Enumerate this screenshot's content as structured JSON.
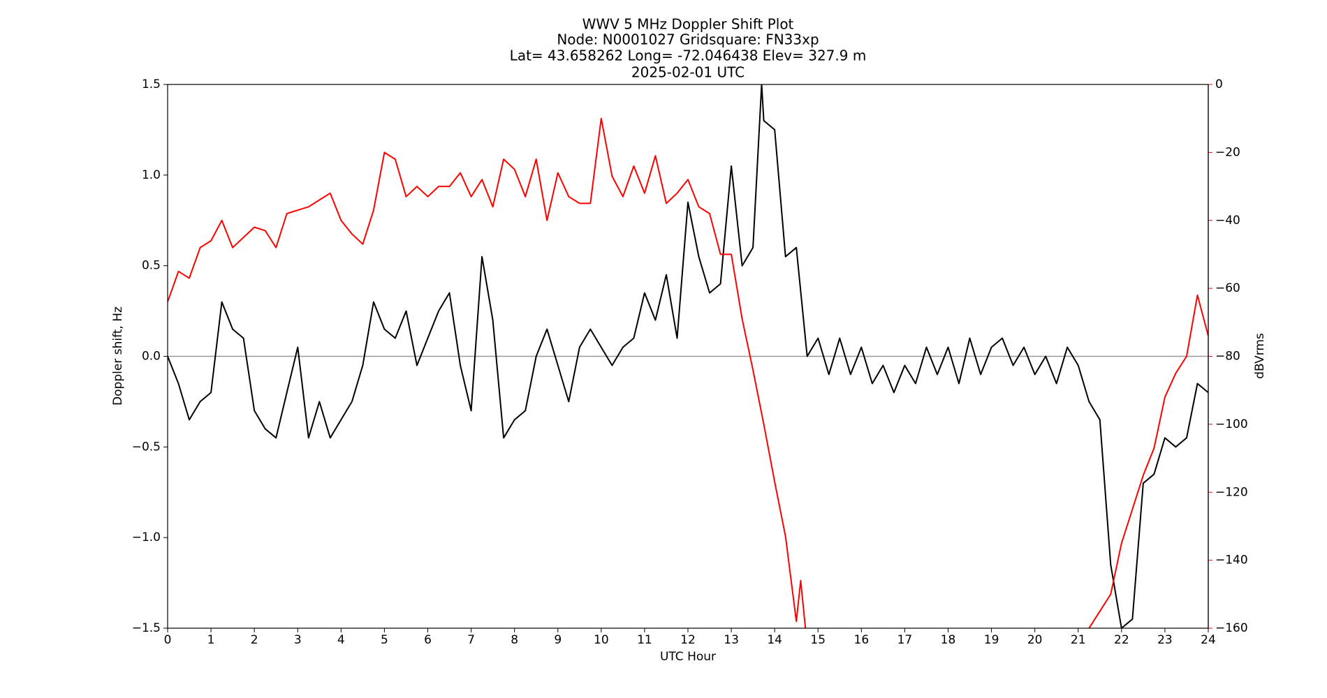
{
  "chart_data": {
    "type": "line",
    "title": [
      "WWV 5 MHz Doppler Shift Plot",
      "Node:  N0001027     Gridsquare:  FN33xp",
      "Lat=   43.658262    Long= -72.046438    Elev= 327.9 m",
      "2025-02-01  UTC"
    ],
    "x_label": "UTC Hour",
    "y_label": "Doppler shift, Hz",
    "y2_label": "dBVrms",
    "xlim": [
      0,
      24
    ],
    "xticks": [
      0,
      1,
      2,
      3,
      4,
      5,
      6,
      7,
      8,
      9,
      10,
      11,
      12,
      13,
      14,
      15,
      16,
      17,
      18,
      19,
      20,
      21,
      22,
      23,
      24
    ],
    "ylim": [
      -1.5,
      1.5
    ],
    "yticks": [
      {
        "value": -1.5,
        "label": "−1.5"
      },
      {
        "value": -1.0,
        "label": "−1.0"
      },
      {
        "value": -0.5,
        "label": "−0.5"
      },
      {
        "value": 0,
        "label": "0.0"
      },
      {
        "value": 0.5,
        "label": "0.5"
      },
      {
        "value": 1.0,
        "label": "1.0"
      },
      {
        "value": 1.5,
        "label": "1.5"
      }
    ],
    "y2lim": [
      -160,
      0
    ],
    "y2ticks": [
      {
        "value": -160,
        "label": "−160"
      },
      {
        "value": -140,
        "label": "−140"
      },
      {
        "value": -120,
        "label": "−120"
      },
      {
        "value": -100,
        "label": "−100"
      },
      {
        "value": -80,
        "label": "−80"
      },
      {
        "value": -60,
        "label": "−60"
      },
      {
        "value": -40,
        "label": "−40"
      },
      {
        "value": -20,
        "label": "−20"
      },
      0
    ],
    "y2color": "#ff0000",
    "zero_line_color": "#999999",
    "series": [
      {
        "color": "#000000",
        "x": [
          0,
          0.25,
          0.5,
          0.75,
          1,
          1.25,
          1.5,
          1.75,
          2,
          2.25,
          2.5,
          2.75,
          3,
          3.25,
          3.5,
          3.75,
          4,
          4.25,
          4.5,
          4.75,
          5,
          5.25,
          5.5,
          5.75,
          6,
          6.25,
          6.5,
          6.75,
          7,
          7.25,
          7.5,
          7.75,
          8,
          8.25,
          8.5,
          8.75,
          9,
          9.25,
          9.5,
          9.75,
          10,
          10.25,
          10.5,
          10.75,
          11,
          11.25,
          11.5,
          11.75,
          12,
          12.25,
          12.5,
          12.75,
          13,
          13.25,
          13.5,
          13.7,
          13.75,
          14,
          14.25,
          14.5,
          14.75,
          15,
          15.25,
          15.5,
          15.75,
          16,
          16.25,
          16.5,
          16.75,
          17,
          17.25,
          17.5,
          17.75,
          18,
          18.25,
          18.5,
          18.75,
          19,
          19.25,
          19.5,
          19.75,
          20,
          20.25,
          20.5,
          20.75,
          21,
          21.25,
          21.5,
          21.75,
          22,
          22.25,
          22.5,
          22.75,
          23,
          23.25,
          23.5,
          23.75,
          24
        ],
        "values": [
          0,
          -0.15,
          -0.35,
          -0.25,
          -0.2,
          0.3,
          0.15,
          0.1,
          -0.3,
          -0.4,
          -0.45,
          -0.2,
          0.05,
          -0.45,
          -0.25,
          -0.45,
          -0.35,
          -0.25,
          -0.05,
          0.3,
          0.15,
          0.1,
          0.25,
          -0.05,
          0.1,
          0.25,
          0.35,
          -0.05,
          -0.3,
          0.55,
          0.2,
          -0.45,
          -0.35,
          -0.3,
          0,
          0.15,
          -0.05,
          -0.25,
          0.05,
          0.15,
          0.05,
          -0.05,
          0.05,
          0.1,
          0.35,
          0.2,
          0.45,
          0.1,
          0.85,
          0.55,
          0.35,
          0.4,
          1.05,
          0.5,
          0.6,
          1.5,
          1.3,
          1.25,
          0.55,
          0.6,
          0,
          0.1,
          -0.1,
          0.1,
          -0.1,
          0.05,
          -0.15,
          -0.05,
          -0.2,
          -0.05,
          -0.15,
          0.05,
          -0.1,
          0.05,
          -0.15,
          0.1,
          -0.1,
          0.05,
          0.1,
          -0.05,
          0.05,
          -0.1,
          0,
          -0.15,
          0.05,
          -0.05,
          -0.25,
          -0.35,
          -1.15,
          -1.5,
          -1.45,
          -0.7,
          -0.65,
          -0.45,
          -0.5,
          -0.45,
          -0.15,
          -0.2
        ]
      },
      {
        "color": "#ff0000",
        "axis": "y2",
        "x": [
          0,
          0.25,
          0.5,
          0.75,
          1,
          1.25,
          1.5,
          1.75,
          2,
          2.25,
          2.5,
          2.75,
          3,
          3.25,
          3.5,
          3.75,
          4,
          4.25,
          4.5,
          4.75,
          5,
          5.25,
          5.5,
          5.75,
          6,
          6.25,
          6.5,
          6.75,
          7,
          7.25,
          7.5,
          7.75,
          8,
          8.25,
          8.5,
          8.75,
          9,
          9.25,
          9.5,
          9.75,
          10,
          10.25,
          10.5,
          10.75,
          11,
          11.25,
          11.5,
          11.75,
          12,
          12.25,
          12.5,
          12.75,
          13,
          13.25,
          13.5,
          13.75,
          14,
          14.25,
          14.5,
          14.6,
          14.75,
          15,
          21.25,
          21.5,
          21.75,
          22,
          22.25,
          22.5,
          22.75,
          23,
          23.25,
          23.5,
          23.75,
          24
        ],
        "values": [
          -64,
          -55,
          -57,
          -48,
          -46,
          -40,
          -48,
          -45,
          -42,
          -43,
          -48,
          -38,
          -37,
          -36,
          -34,
          -32,
          -40,
          -44,
          -47,
          -37,
          -20,
          -22,
          -33,
          -30,
          -33,
          -30,
          -30,
          -26,
          -33,
          -28,
          -36,
          -22,
          -25,
          -33,
          -22,
          -40,
          -26,
          -33,
          -35,
          -35,
          -10,
          -27,
          -33,
          -24,
          -32,
          -21,
          -35,
          -32,
          -28,
          -36,
          -38,
          -50,
          -50,
          -69,
          -84,
          -100,
          -117,
          -133,
          -158,
          -146,
          -165,
          null,
          -160,
          -155,
          -150,
          -135,
          -125,
          -115,
          -107,
          -92,
          -85,
          -80,
          -62,
          -74
        ]
      }
    ]
  }
}
